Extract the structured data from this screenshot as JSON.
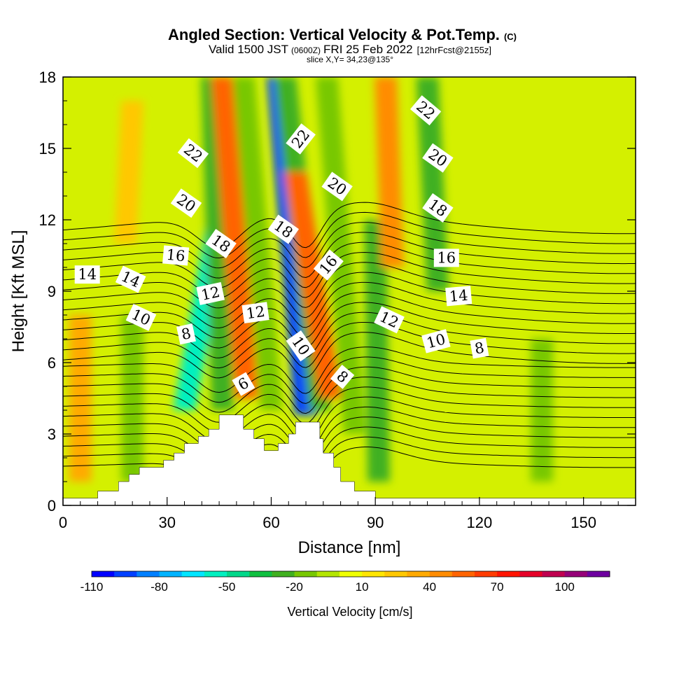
{
  "title": {
    "main": "Angled Section: Vertical Velocity & Pot.Temp.",
    "main_unit": "(C)",
    "valid_prefix": "Valid 1500 JST",
    "valid_zulu": "(0600Z)",
    "valid_date": "FRI 25 Feb 2022",
    "forecast": "[12hrFcst@2155z]",
    "slice": "slice X,Y= 34,23@135°"
  },
  "chart_data": {
    "type": "heatmap",
    "xlabel": "Distance [nm]",
    "ylabel": "Height [Kft MSL]",
    "xlim": [
      0,
      165
    ],
    "ylim": [
      0,
      18
    ],
    "xticks": [
      0,
      30,
      60,
      90,
      120,
      150
    ],
    "yticks": [
      0,
      3,
      6,
      9,
      12,
      15,
      18
    ],
    "colorbar": {
      "label": "Vertical Velocity [cm/s]",
      "min": -110,
      "max": 120,
      "step": 10,
      "tick_values": [
        -110,
        -80,
        -50,
        -20,
        10,
        40,
        70,
        100
      ],
      "colors": [
        "#0000ff",
        "#0040ff",
        "#0080ff",
        "#00b4ff",
        "#00e6ff",
        "#00f0c0",
        "#00d88a",
        "#10c040",
        "#40b020",
        "#78c800",
        "#b4e600",
        "#f0ff00",
        "#ffe600",
        "#ffc800",
        "#ffaa00",
        "#ff8c00",
        "#ff6400",
        "#ff3c00",
        "#ff1400",
        "#e60028",
        "#c00050",
        "#960078",
        "#6e00a0"
      ]
    },
    "velocity_features": [
      {
        "x0": 35,
        "x1": 52,
        "y_bottom": 4.0,
        "y_top": 18,
        "value": -55
      },
      {
        "x0": 46,
        "x1": 43,
        "y_bottom": 4.0,
        "y_top": 18,
        "value": -25
      },
      {
        "x0": 53,
        "x1": 46,
        "y_bottom": 4.5,
        "y_top": 18,
        "value": 50
      },
      {
        "x0": 60,
        "x1": 52,
        "y_bottom": 4.0,
        "y_top": 18,
        "value": -15
      },
      {
        "x0": 70,
        "x1": 62,
        "y_bottom": 3.8,
        "y_top": 18,
        "value": -95
      },
      {
        "x0": 74,
        "x1": 64,
        "y_bottom": 4.0,
        "y_top": 18,
        "value": -30
      },
      {
        "x0": 77,
        "x1": 67,
        "y_bottom": 4.5,
        "y_top": 14,
        "value": 55
      },
      {
        "x0": 84,
        "x1": 76,
        "y_bottom": 3.0,
        "y_top": 18,
        "value": -20
      },
      {
        "x0": 91,
        "x1": 90,
        "y_bottom": 1.0,
        "y_top": 12,
        "value": -30
      },
      {
        "x0": 95,
        "x1": 93,
        "y_bottom": 10,
        "y_top": 18,
        "value": 45
      },
      {
        "x0": 108,
        "x1": 105,
        "y_bottom": 9,
        "y_top": 18,
        "value": -25
      },
      {
        "x0": 138,
        "x1": 138,
        "y_bottom": 1,
        "y_top": 7,
        "value": -20
      },
      {
        "x0": 5,
        "x1": 5,
        "y_bottom": 1,
        "y_top": 8,
        "value": 30
      },
      {
        "x0": 20,
        "x1": 20,
        "y_bottom": 1,
        "y_top": 8,
        "value": -15
      },
      {
        "x0": 18,
        "x1": 20,
        "y_bottom": 11,
        "y_top": 17,
        "value": 25
      }
    ],
    "isentrope_levels": [
      2,
      3,
      4,
      5,
      6,
      7,
      8,
      9,
      10,
      11,
      12,
      13,
      14,
      15,
      16,
      17,
      18,
      19,
      20,
      21,
      22,
      23,
      24,
      25,
      26
    ],
    "contour_labels": [
      {
        "text": "22",
        "x": 37.5,
        "y": 14.8,
        "angle": 38
      },
      {
        "text": "20",
        "x": 35.5,
        "y": 12.7,
        "angle": 35
      },
      {
        "text": "16",
        "x": 32.5,
        "y": 10.5,
        "angle": 5
      },
      {
        "text": "18",
        "x": 45.5,
        "y": 11.0,
        "angle": 35
      },
      {
        "text": "14",
        "x": 7,
        "y": 9.7,
        "angle": 0
      },
      {
        "text": "14",
        "x": 19.5,
        "y": 9.5,
        "angle": 25
      },
      {
        "text": "12",
        "x": 42.5,
        "y": 8.9,
        "angle": -12
      },
      {
        "text": "10",
        "x": 22.5,
        "y": 7.9,
        "angle": 25
      },
      {
        "text": "8",
        "x": 35.5,
        "y": 7.2,
        "angle": -12
      },
      {
        "text": "12",
        "x": 55.5,
        "y": 8.1,
        "angle": -8
      },
      {
        "text": "6",
        "x": 52,
        "y": 5.1,
        "angle": -30
      },
      {
        "text": "22",
        "x": 68.5,
        "y": 15.4,
        "angle": -52
      },
      {
        "text": "18",
        "x": 63.5,
        "y": 11.6,
        "angle": 35
      },
      {
        "text": "20",
        "x": 79,
        "y": 13.4,
        "angle": 35
      },
      {
        "text": "16",
        "x": 76.5,
        "y": 10.1,
        "angle": -50
      },
      {
        "text": "10",
        "x": 68.5,
        "y": 6.7,
        "angle": 55
      },
      {
        "text": "8",
        "x": 80.5,
        "y": 5.4,
        "angle": 40
      },
      {
        "text": "12",
        "x": 94,
        "y": 7.8,
        "angle": 25
      },
      {
        "text": "10",
        "x": 107.5,
        "y": 6.9,
        "angle": -15
      },
      {
        "text": "8",
        "x": 120,
        "y": 6.6,
        "angle": -10
      },
      {
        "text": "22",
        "x": 104.5,
        "y": 16.6,
        "angle": 40
      },
      {
        "text": "20",
        "x": 108,
        "y": 14.6,
        "angle": 35
      },
      {
        "text": "18",
        "x": 108,
        "y": 12.5,
        "angle": 35
      },
      {
        "text": "16",
        "x": 110.5,
        "y": 10.4,
        "angle": 0
      },
      {
        "text": "14",
        "x": 114,
        "y": 8.8,
        "angle": -5
      }
    ],
    "terrain": [
      [
        0,
        0.3
      ],
      [
        10,
        0.3
      ],
      [
        10,
        0.6
      ],
      [
        16,
        0.6
      ],
      [
        16,
        1.0
      ],
      [
        19,
        1.0
      ],
      [
        19,
        1.3
      ],
      [
        22,
        1.3
      ],
      [
        22,
        1.6
      ],
      [
        29,
        1.6
      ],
      [
        29,
        1.9
      ],
      [
        32,
        1.9
      ],
      [
        32,
        2.2
      ],
      [
        35,
        2.2
      ],
      [
        35,
        2.6
      ],
      [
        39,
        2.6
      ],
      [
        39,
        2.9
      ],
      [
        42,
        2.9
      ],
      [
        42,
        3.2
      ],
      [
        45,
        3.2
      ],
      [
        45,
        3.8
      ],
      [
        52,
        3.8
      ],
      [
        52,
        3.2
      ],
      [
        55,
        3.2
      ],
      [
        55,
        2.8
      ],
      [
        58,
        2.8
      ],
      [
        58,
        2.3
      ],
      [
        62,
        2.3
      ],
      [
        62,
        2.6
      ],
      [
        65,
        2.6
      ],
      [
        65,
        3.0
      ],
      [
        67,
        3.0
      ],
      [
        67,
        3.5
      ],
      [
        74,
        3.5
      ],
      [
        74,
        2.8
      ],
      [
        75,
        2.8
      ],
      [
        75,
        2.2
      ],
      [
        78,
        2.2
      ],
      [
        78,
        1.6
      ],
      [
        80,
        1.6
      ],
      [
        80,
        1.0
      ],
      [
        84,
        1.0
      ],
      [
        84,
        0.6
      ],
      [
        90,
        0.6
      ],
      [
        90,
        0.3
      ],
      [
        165,
        0.3
      ],
      [
        165,
        0
      ],
      [
        0,
        0
      ]
    ]
  }
}
